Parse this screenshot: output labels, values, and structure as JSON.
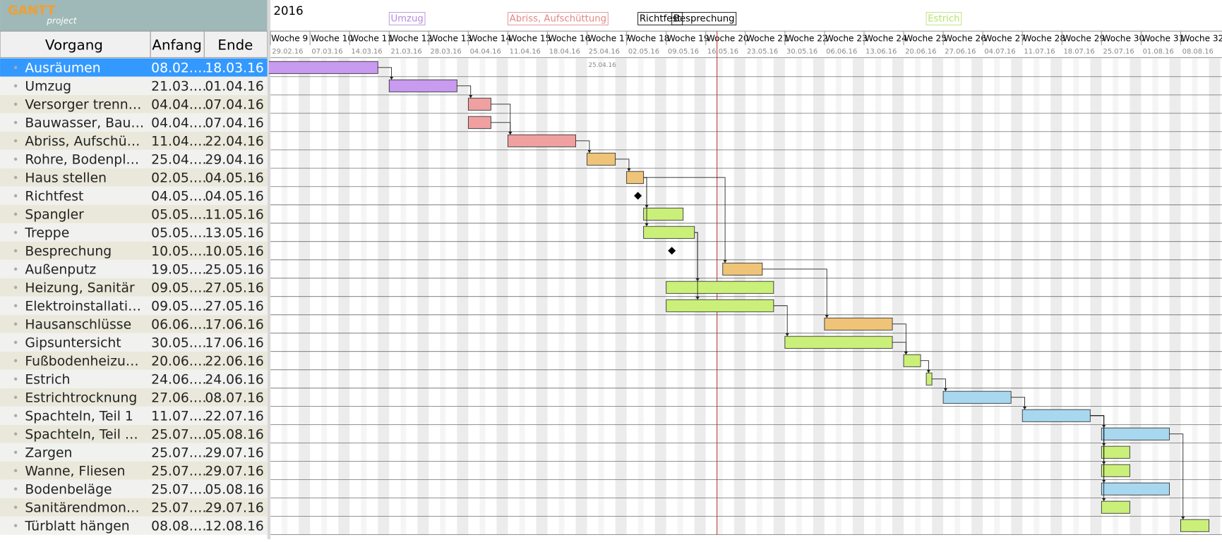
{
  "logo": {
    "title": "GANTT",
    "subtitle": "project"
  },
  "table": {
    "columns": [
      "Vorgang",
      "Anfang",
      "Ende"
    ],
    "rows": [
      {
        "name": "Ausräumen",
        "start": "08.02.…",
        "end": "18.03.16",
        "color": "#c89af0"
      },
      {
        "name": "Umzug",
        "start": "21.03.…",
        "end": "01.04.16",
        "color": "#c89af0"
      },
      {
        "name": "Versorger trenn…",
        "start": "04.04.…",
        "end": "07.04.16",
        "color": "#f0a0a0"
      },
      {
        "name": "Bauwasser, Bau…",
        "start": "04.04.…",
        "end": "07.04.16",
        "color": "#f0a0a0"
      },
      {
        "name": "Abriss, Aufschü…",
        "start": "11.04.…",
        "end": "22.04.16",
        "color": "#f0a0a0"
      },
      {
        "name": "Rohre, Bodenpl…",
        "start": "25.04.…",
        "end": "29.04.16",
        "color": "#f0c478"
      },
      {
        "name": "Haus stellen",
        "start": "02.05.…",
        "end": "04.05.16",
        "color": "#f0c478"
      },
      {
        "name": "Richtfest",
        "start": "04.05.…",
        "end": "04.05.16",
        "color": "#000000",
        "milestone": true
      },
      {
        "name": "Spangler",
        "start": "05.05.…",
        "end": "11.05.16",
        "color": "#cbf07a"
      },
      {
        "name": "Treppe",
        "start": "05.05.…",
        "end": "13.05.16",
        "color": "#cbf07a"
      },
      {
        "name": "Besprechung",
        "start": "10.05.…",
        "end": "10.05.16",
        "color": "#000000",
        "milestone": true
      },
      {
        "name": "Außenputz",
        "start": "19.05.…",
        "end": "25.05.16",
        "color": "#f0c478"
      },
      {
        "name": "Heizung, Sanitär",
        "start": "09.05.…",
        "end": "27.05.16",
        "color": "#cbf07a"
      },
      {
        "name": "Elektroinstallati…",
        "start": "09.05.…",
        "end": "27.05.16",
        "color": "#cbf07a"
      },
      {
        "name": "Hausanschlüsse",
        "start": "06.06.…",
        "end": "17.06.16",
        "color": "#f0c478"
      },
      {
        "name": "Gipsuntersicht",
        "start": "30.05.…",
        "end": "17.06.16",
        "color": "#cbf07a"
      },
      {
        "name": "Fußbodenheizu…",
        "start": "20.06.…",
        "end": "22.06.16",
        "color": "#cbf07a"
      },
      {
        "name": "Estrich",
        "start": "24.06.…",
        "end": "24.06.16",
        "color": "#cbf07a"
      },
      {
        "name": "Estrichtrocknung",
        "start": "27.06.…",
        "end": "08.07.16",
        "color": "#a8d8f0"
      },
      {
        "name": "Spachteln, Teil 1",
        "start": "11.07.…",
        "end": "22.07.16",
        "color": "#a8d8f0"
      },
      {
        "name": "Spachteln, Teil …",
        "start": "25.07.…",
        "end": "05.08.16",
        "color": "#a8d8f0"
      },
      {
        "name": "Zargen",
        "start": "25.07.…",
        "end": "29.07.16",
        "color": "#cbf07a"
      },
      {
        "name": "Wanne, Fliesen",
        "start": "25.07.…",
        "end": "29.07.16",
        "color": "#cbf07a"
      },
      {
        "name": "Bodenbeläge",
        "start": "25.07.…",
        "end": "05.08.16",
        "color": "#a8d8f0"
      },
      {
        "name": "Sanitärendmon…",
        "start": "25.07.…",
        "end": "29.07.16",
        "color": "#cbf07a"
      },
      {
        "name": "Türblatt hängen",
        "start": "08.08.…",
        "end": "12.08.16",
        "color": "#cbf07a"
      }
    ]
  },
  "timeline": {
    "year": "2016",
    "marker": "25.04.16",
    "top_labels": [
      {
        "text": "Umzug",
        "color": "#b58ad8"
      },
      {
        "text": "Abriss, Aufschüttung",
        "color": "#e08888"
      },
      {
        "text": "Richtfest",
        "color": "#000000"
      },
      {
        "text": "Besprechung",
        "color": "#000000"
      },
      {
        "text": "Estrich",
        "color": "#b8e070"
      }
    ],
    "weeks": [
      {
        "label": "Woche 9",
        "date": "29.02.16"
      },
      {
        "label": "Woche 10",
        "date": "07.03.16"
      },
      {
        "label": "Woche 11",
        "date": "14.03.16"
      },
      {
        "label": "Woche 12",
        "date": "21.03.16"
      },
      {
        "label": "Woche 13",
        "date": "28.03.16"
      },
      {
        "label": "Woche 14",
        "date": "04.04.16"
      },
      {
        "label": "Woche 15",
        "date": "11.04.16"
      },
      {
        "label": "Woche 16",
        "date": "18.04.16"
      },
      {
        "label": "Woche 17",
        "date": "25.04.16"
      },
      {
        "label": "Woche 18",
        "date": "02.05.16"
      },
      {
        "label": "Woche 19",
        "date": "09.05.16"
      },
      {
        "label": "Woche 20",
        "date": "16.05.16"
      },
      {
        "label": "Woche 21",
        "date": "23.05.16"
      },
      {
        "label": "Woche 22",
        "date": "30.05.16"
      },
      {
        "label": "Woche 23",
        "date": "06.06.16"
      },
      {
        "label": "Woche 24",
        "date": "13.06.16"
      },
      {
        "label": "Woche 25",
        "date": "20.06.16"
      },
      {
        "label": "Woche 26",
        "date": "27.06.16"
      },
      {
        "label": "Woche 27",
        "date": "04.07.16"
      },
      {
        "label": "Woche 28",
        "date": "11.07.16"
      },
      {
        "label": "Woche 29",
        "date": "18.07.16"
      },
      {
        "label": "Woche 30",
        "date": "25.07.16"
      },
      {
        "label": "Woche 31",
        "date": "01.08.16"
      },
      {
        "label": "Woche 32",
        "date": "08.08.16"
      }
    ]
  }
}
